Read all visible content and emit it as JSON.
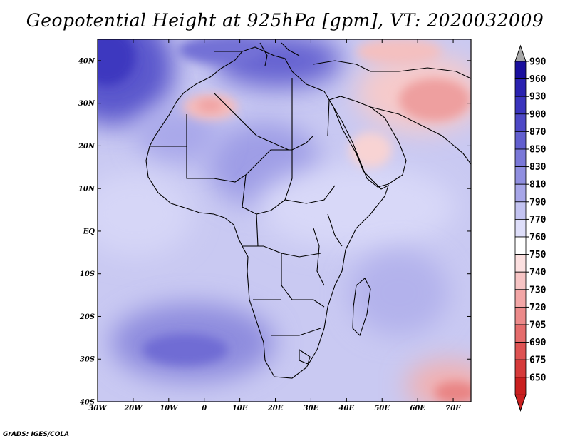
{
  "title": "Geopotential Height at 925hPa [gpm], VT: 2020032009",
  "credit": "GrADS: IGES/COLA",
  "map": {
    "region": "Africa and Middle East",
    "lon_range": [
      -30,
      75
    ],
    "lat_range": [
      -40,
      45
    ],
    "lat_labels": [
      "40N",
      "30N",
      "20N",
      "10N",
      "EQ",
      "10S",
      "20S",
      "30S",
      "40S"
    ],
    "lat_values": [
      40,
      30,
      20,
      10,
      0,
      -10,
      -20,
      -30,
      -40
    ],
    "lon_labels": [
      "30W",
      "20W",
      "10W",
      "0",
      "10E",
      "20E",
      "30E",
      "40E",
      "50E",
      "60E",
      "70E"
    ],
    "lon_values": [
      -30,
      -20,
      -10,
      0,
      10,
      20,
      30,
      40,
      50,
      60,
      70
    ]
  },
  "colorbar": {
    "labels": [
      "990",
      "960",
      "930",
      "900",
      "870",
      "850",
      "830",
      "810",
      "790",
      "770",
      "760",
      "750",
      "740",
      "730",
      "720",
      "705",
      "690",
      "675",
      "650"
    ],
    "colors": [
      "#1a0f9e",
      "#2a22b0",
      "#3a34bd",
      "#4d48c6",
      "#625fcf",
      "#7a78d8",
      "#908fe0",
      "#a7a6e8",
      "#c3c3f1",
      "#dedef9",
      "#ffffff",
      "#fce0e0",
      "#f7c4c4",
      "#f2a6a6",
      "#ec8a8a",
      "#e56c6c",
      "#de5252",
      "#d63a3a",
      "#c91f1f"
    ],
    "top_arrow_color": "#a8a8a8",
    "bottom_arrow_color": "#c91f1f"
  }
}
